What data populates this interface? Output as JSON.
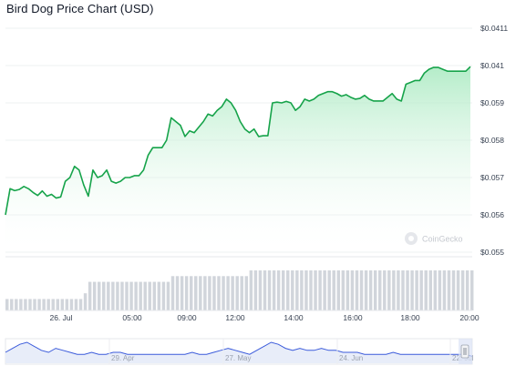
{
  "header": {
    "title": "Bird Dog Price Chart (USD)"
  },
  "watermark": {
    "text": "CoinGecko"
  },
  "colors": {
    "line": "#16a34a",
    "fill_top": "#bbf7d0",
    "grid": "#eef0f2",
    "volume": "#d1d5db",
    "nav_line": "#3b5bdb"
  },
  "chart_data": {
    "type": "line",
    "title": "Bird Dog Price Chart (USD)",
    "y_ticks": [
      "$0.0411",
      "$0.041",
      "$0.059",
      "$0.058",
      "$0.057",
      "$0.056",
      "$0.055"
    ],
    "x_ticks": [
      "26. Jul",
      "05:00",
      "09:00",
      "12:00",
      "14:00",
      "16:00",
      "18:00",
      "20:00"
    ],
    "nav_ticks": [
      "29. Apr",
      "27. May",
      "24. Jun",
      "22. Jul"
    ],
    "series": [
      {
        "values": [
          0.056,
          0.0567,
          0.05665,
          0.05668,
          0.05676,
          0.0567,
          0.0566,
          0.05652,
          0.05664,
          0.0565,
          0.05655,
          0.05645,
          0.05648,
          0.0569,
          0.057,
          0.0573,
          0.0572,
          0.0568,
          0.0565,
          0.0572,
          0.057,
          0.05705,
          0.0572,
          0.0569,
          0.05685,
          0.0569,
          0.057,
          0.057,
          0.05705,
          0.05705,
          0.0572,
          0.0576,
          0.0578,
          0.0578,
          0.0578,
          0.058,
          0.0586,
          0.0585,
          0.0584,
          0.0581,
          0.05825,
          0.0582,
          0.05835,
          0.0585,
          0.0587,
          0.05865,
          0.0588,
          0.0589,
          0.0591,
          0.059,
          0.0588,
          0.0585,
          0.0583,
          0.0582,
          0.0583,
          0.0581,
          0.05812,
          0.05812,
          0.059,
          0.05902,
          0.059,
          0.05904,
          0.059,
          0.0588,
          0.0589,
          0.0591,
          0.05905,
          0.0591,
          0.0592,
          0.05925,
          0.0593,
          0.0593,
          0.05925,
          0.05918,
          0.05922,
          0.05915,
          0.0591,
          0.05912,
          0.0592,
          0.0591,
          0.05905,
          0.05905,
          0.05905,
          0.05915,
          0.05925,
          0.0591,
          0.05905,
          0.0595,
          0.05955,
          0.0596,
          0.0596,
          0.0598,
          0.0599,
          0.05995,
          0.05995,
          0.0599,
          0.05985,
          0.05985,
          0.05985,
          0.05985,
          0.05985,
          0.05997
        ]
      }
    ],
    "volume": [
      2,
      2,
      2,
      2,
      2,
      2,
      2,
      2,
      2,
      2,
      2,
      2,
      2,
      2,
      2,
      2,
      2,
      3,
      5,
      5,
      5,
      5,
      5,
      5,
      5,
      5,
      5,
      5,
      5,
      5,
      5,
      5,
      5,
      5,
      5,
      5,
      6,
      6,
      6,
      6,
      6,
      6,
      6,
      6,
      6,
      6,
      6,
      6,
      6,
      6,
      6,
      6,
      6,
      7,
      7,
      7,
      7,
      7,
      7,
      7,
      7,
      7,
      7,
      7,
      7,
      7,
      7,
      7,
      7,
      7,
      7,
      7,
      7,
      7,
      7,
      7,
      7,
      7,
      7,
      7,
      7,
      7,
      7,
      7,
      7,
      7,
      7,
      7,
      7,
      7,
      7,
      7,
      7,
      7,
      7,
      7,
      7,
      7,
      7,
      7,
      7,
      7
    ],
    "nav_series": [
      5,
      7,
      9,
      10,
      8,
      6,
      5,
      7,
      6,
      5,
      4,
      4,
      5,
      4,
      4,
      5,
      5,
      4,
      4,
      4,
      4,
      4,
      4,
      4,
      4,
      4,
      5,
      4,
      4,
      5,
      6,
      7,
      6,
      5,
      4,
      6,
      8,
      10,
      9,
      7,
      6,
      7,
      6,
      6,
      7,
      6,
      6,
      5,
      5,
      5,
      4,
      4,
      4,
      4,
      5,
      4,
      4,
      4,
      4,
      4,
      4,
      4,
      4,
      4,
      4,
      3
    ]
  }
}
